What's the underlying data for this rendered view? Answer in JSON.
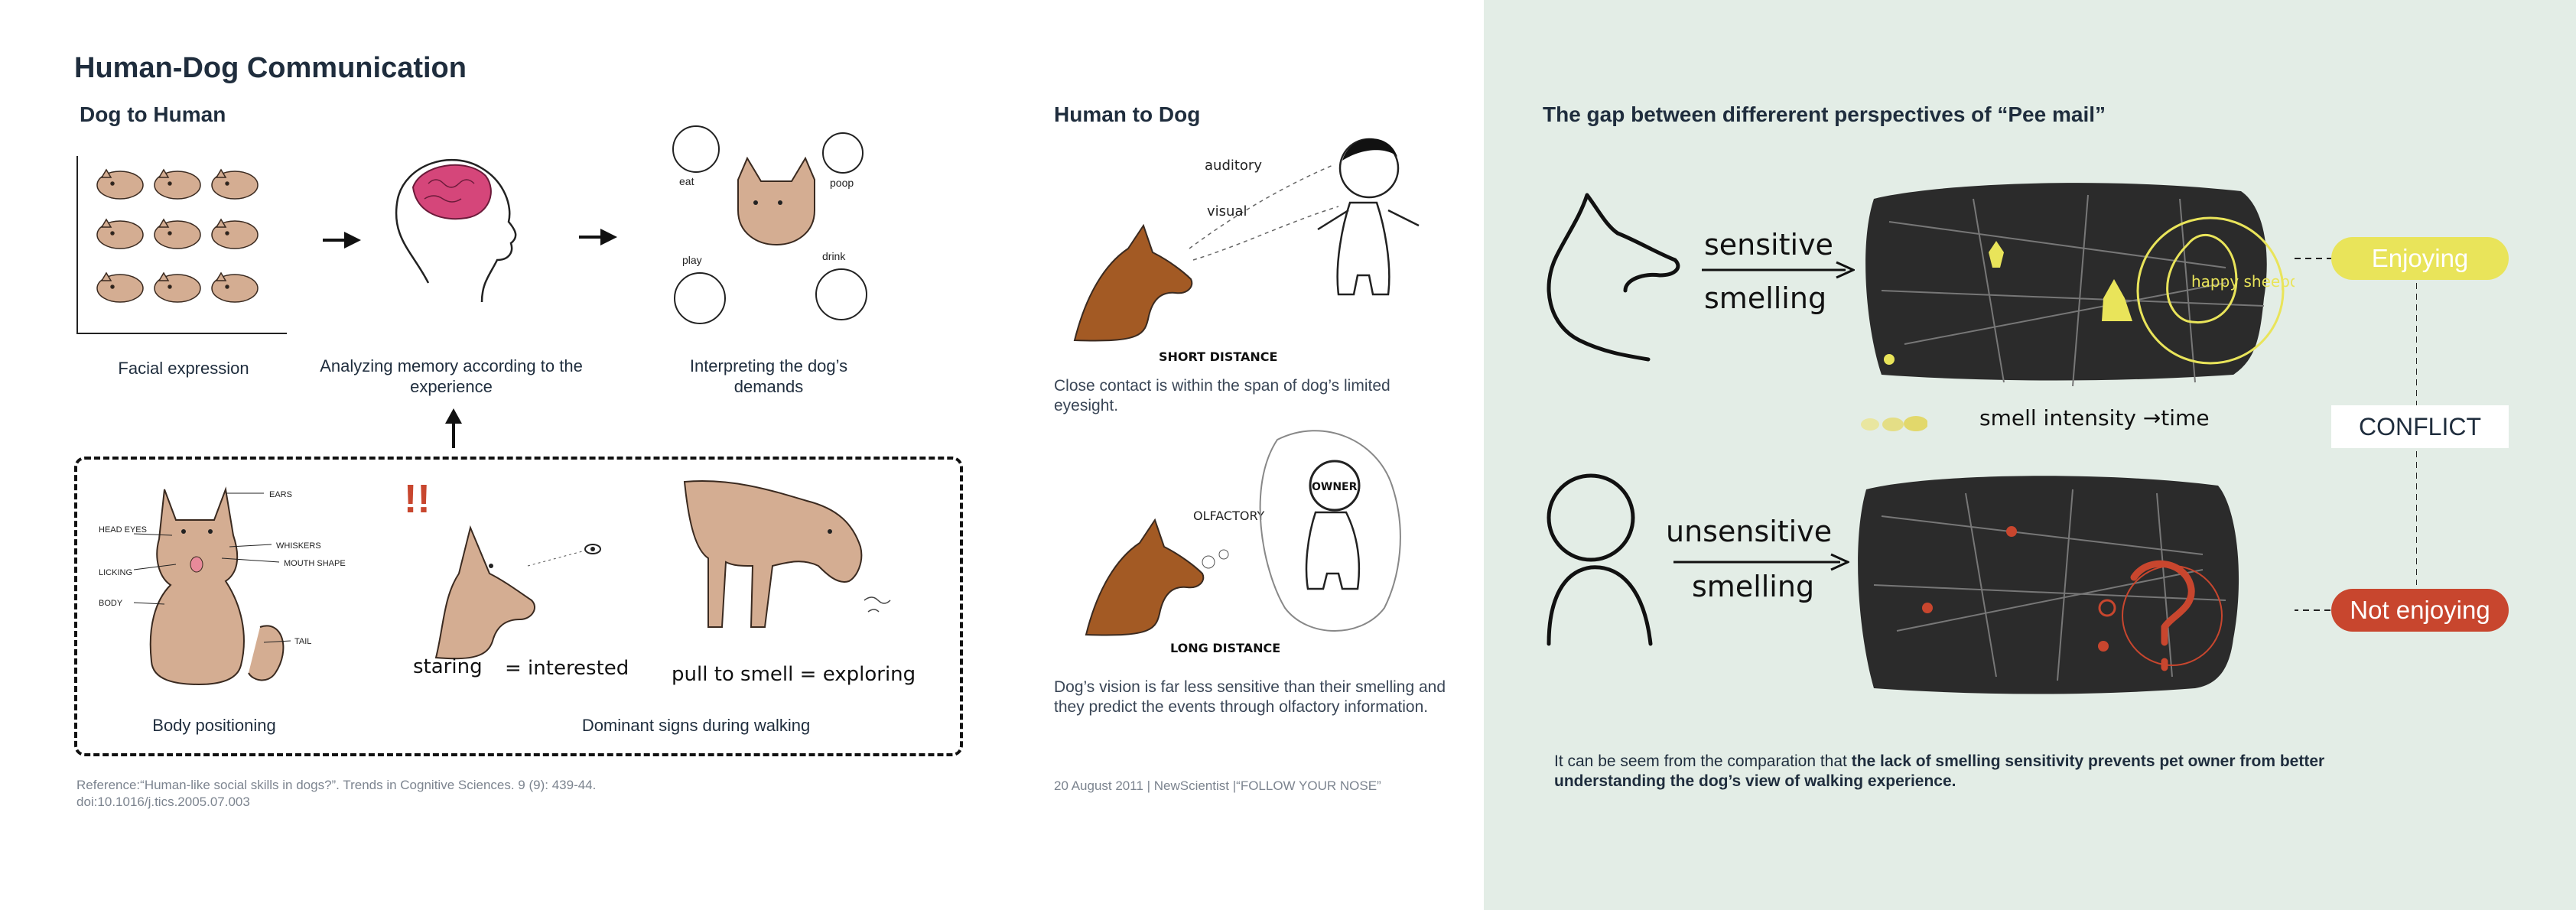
{
  "title": "Human-Dog Communication",
  "dog_to_human": {
    "heading": "Dog to Human",
    "caption_facial": "Facial expression",
    "caption_memory": "Analyzing memory according to the experience",
    "caption_interpret": "Interpreting the dog’s demands",
    "caption_body": "Body positioning",
    "caption_walking": "Dominant signs during walking",
    "sketch_labels": {
      "eat": "eat",
      "poop": "poop",
      "play": "play",
      "drink": "drink",
      "ears": "EARS",
      "head_eyes": "HEAD EYES",
      "licking": "LICKING",
      "body": "BODY",
      "whiskers": "WHISKERS",
      "mouth_shape": "MOUTH SHAPE",
      "tail": "TAIL",
      "staring": "staring",
      "interested": "= interested",
      "pull": "pull to smell = exploring"
    },
    "reference": "Reference:“Human-like social skills in dogs?”. Trends in Cognitive Sciences. 9 (9): 439-44. doi:10.1016/j.tics.2005.07.003"
  },
  "human_to_dog": {
    "heading": "Human to Dog",
    "sketch_labels": {
      "auditory": "auditory",
      "visual": "visual",
      "short_distance": "SHORT DISTANCE",
      "olfactory": "OLFACTORY",
      "owner": "OWNER",
      "long_distance": "LONG DISTANCE"
    },
    "para_close": "Close contact is within the span of dog’s limited eyesight.",
    "para_vision": "Dog’s vision is far less sensitive than their smelling and they predict the events through olfactory information.",
    "source": "20 August 2011 | NewScientist |“FOLLOW YOUR NOSE”"
  },
  "gap": {
    "heading": "The gap between differerent perspectives of “Pee mail”",
    "sensitive": "sensitive",
    "smelling": "smelling",
    "unsensitive": "unsensitive",
    "smell_axis": "smell intensity →time",
    "happy_label": "happy sheepdog",
    "enjoying": "Enjoying",
    "conflict": "CONFLICT",
    "not_enjoying": "Not enjoying",
    "conclusion_plain": "It can be seem from the comparation that ",
    "conclusion_bold": "the lack of smelling sensitivity prevents pet owner from better understanding the dog’s view of walking experience."
  },
  "colors": {
    "right_panel_bg": "#e3ede6",
    "enjoying": "#e9e45a",
    "not_enjoying": "#c8462e",
    "dog_tan": "#d4ad92",
    "dog_brown": "#a35a24",
    "brain_pink": "#d5467a"
  }
}
